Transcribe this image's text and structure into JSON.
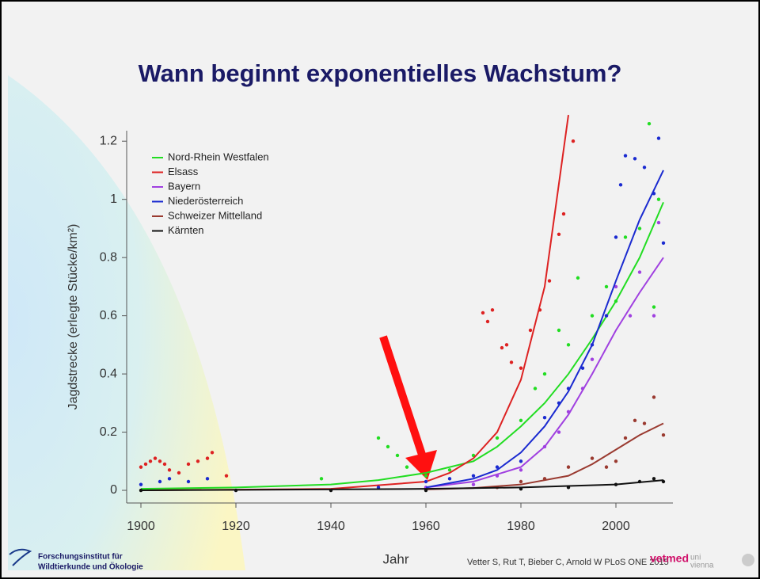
{
  "title": "Wann beginnt exponentielles Wachstum?",
  "footer": {
    "citation": "Vetter S, Rut T, Bieber C, Arnold W PLoS ONE 2015",
    "institute_1": "Forschungsinstitut für",
    "institute_2": "Wildtierkunde und Ökologie",
    "logo_1": "vetmed",
    "logo_2": "uni",
    "logo_3": "vienna"
  },
  "chart_data": {
    "type": "scatter",
    "xlabel": "Jahr",
    "ylabel": "Jagdstrecke (erlegte Stücke/km²)",
    "xlim": [
      1897,
      2012
    ],
    "ylim": [
      -0.0435,
      1.236
    ],
    "xticks": [
      1900,
      1920,
      1940,
      1960,
      1980,
      2000
    ],
    "yticks": [
      0,
      0.2,
      0.4,
      0.6,
      0.8,
      1.0,
      1.2
    ],
    "legend": "upper left",
    "series": [
      {
        "name": "Nord-Rhein Westfalen",
        "color": "#22dd22",
        "points": {
          "x": [
            1938,
            1950,
            1952,
            1954,
            1956,
            1960,
            1965,
            1970,
            1975,
            1980,
            1983,
            1985,
            1988,
            1990,
            1992,
            1995,
            1998,
            2000,
            2002,
            2005,
            2007,
            2008,
            2009
          ],
          "values": [
            0.04,
            0.18,
            0.15,
            0.12,
            0.08,
            0.05,
            0.07,
            0.12,
            0.18,
            0.24,
            0.35,
            0.4,
            0.55,
            0.5,
            0.73,
            0.6,
            0.7,
            0.65,
            0.87,
            0.9,
            1.26,
            0.63,
            1.0
          ]
        },
        "fit": {
          "x": [
            1900,
            1920,
            1940,
            1950,
            1960,
            1970,
            1975,
            1980,
            1985,
            1990,
            1995,
            2000,
            2005,
            2010
          ],
          "values": [
            0.005,
            0.01,
            0.02,
            0.035,
            0.06,
            0.1,
            0.15,
            0.22,
            0.3,
            0.4,
            0.52,
            0.65,
            0.8,
            0.99
          ]
        }
      },
      {
        "name": "Elsass",
        "color": "#dd2222",
        "points": {
          "x": [
            1900,
            1901,
            1902,
            1903,
            1904,
            1905,
            1906,
            1908,
            1910,
            1912,
            1914,
            1915,
            1918,
            1972,
            1973,
            1974,
            1976,
            1977,
            1978,
            1980,
            1982,
            1984,
            1986,
            1988,
            1989,
            1991
          ],
          "values": [
            0.08,
            0.09,
            0.1,
            0.11,
            0.1,
            0.09,
            0.07,
            0.06,
            0.09,
            0.1,
            0.11,
            0.13,
            0.05,
            0.61,
            0.58,
            0.62,
            0.49,
            0.5,
            0.44,
            0.42,
            0.55,
            0.62,
            0.72,
            0.88,
            0.95,
            1.2
          ]
        },
        "fit": {
          "x": [
            1900,
            1940,
            1960,
            1965,
            1970,
            1975,
            1980,
            1985,
            1990
          ],
          "values": [
            0,
            0.005,
            0.03,
            0.06,
            0.11,
            0.2,
            0.38,
            0.7,
            1.29
          ]
        }
      },
      {
        "name": "Bayern",
        "color": "#a040e0",
        "points": {
          "x": [
            1960,
            1970,
            1975,
            1980,
            1985,
            1988,
            1990,
            1993,
            1995,
            1998,
            2000,
            2003,
            2005,
            2008,
            2009
          ],
          "values": [
            0.01,
            0.02,
            0.05,
            0.07,
            0.15,
            0.2,
            0.27,
            0.35,
            0.45,
            0.6,
            0.7,
            0.6,
            0.75,
            0.6,
            0.92
          ]
        },
        "fit": {
          "x": [
            1960,
            1970,
            1980,
            1985,
            1990,
            1995,
            2000,
            2005,
            2010
          ],
          "values": [
            0.01,
            0.03,
            0.08,
            0.15,
            0.26,
            0.4,
            0.55,
            0.68,
            0.8
          ]
        }
      },
      {
        "name": "Niederösterreich",
        "color": "#1a2ad0",
        "points": {
          "x": [
            1900,
            1904,
            1906,
            1910,
            1914,
            1950,
            1960,
            1965,
            1970,
            1975,
            1980,
            1985,
            1988,
            1990,
            1993,
            1995,
            1998,
            2000,
            2001,
            2002,
            2004,
            2006,
            2008,
            2009,
            2010
          ],
          "values": [
            0.02,
            0.03,
            0.04,
            0.03,
            0.04,
            0.01,
            0.03,
            0.04,
            0.05,
            0.08,
            0.1,
            0.25,
            0.3,
            0.35,
            0.42,
            0.5,
            0.6,
            0.87,
            1.05,
            1.15,
            1.14,
            1.11,
            1.02,
            1.21,
            0.85
          ]
        },
        "fit": {
          "x": [
            1960,
            1970,
            1975,
            1980,
            1985,
            1990,
            1995,
            2000,
            2005,
            2010
          ],
          "values": [
            0.01,
            0.04,
            0.07,
            0.13,
            0.22,
            0.34,
            0.5,
            0.72,
            0.93,
            1.1
          ]
        }
      },
      {
        "name": "Schweizer Mittelland",
        "color": "#9a3a30",
        "points": {
          "x": [
            1975,
            1980,
            1985,
            1990,
            1995,
            1998,
            2000,
            2002,
            2004,
            2006,
            2008,
            2010
          ],
          "values": [
            0.01,
            0.03,
            0.04,
            0.08,
            0.11,
            0.08,
            0.1,
            0.18,
            0.24,
            0.23,
            0.32,
            0.19
          ]
        },
        "fit": {
          "x": [
            1960,
            1970,
            1980,
            1990,
            1995,
            2000,
            2005,
            2010
          ],
          "values": [
            0.003,
            0.008,
            0.02,
            0.05,
            0.09,
            0.14,
            0.19,
            0.23
          ]
        }
      },
      {
        "name": "Kärnten",
        "color": "#111111",
        "points": {
          "x": [
            1900,
            1920,
            1940,
            1960,
            1980,
            1990,
            2000,
            2005,
            2008,
            2010
          ],
          "values": [
            0,
            0,
            0,
            0,
            0.005,
            0.01,
            0.02,
            0.03,
            0.04,
            0.03
          ]
        },
        "fit": {
          "x": [
            1900,
            1960,
            1980,
            1990,
            2000,
            2010
          ],
          "values": [
            0,
            0.005,
            0.01,
            0.015,
            0.02,
            0.035
          ]
        }
      }
    ]
  }
}
